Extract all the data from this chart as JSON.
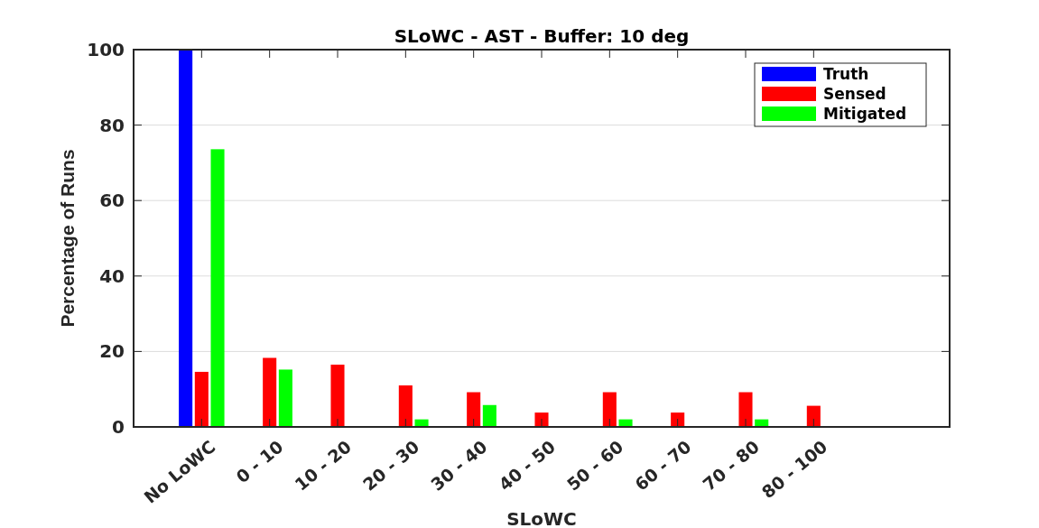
{
  "chart_data": {
    "type": "bar",
    "title": "SLoWC - AST - Buffer: 10 deg",
    "xlabel": "SLoWC",
    "ylabel": "Percentage of Runs",
    "categories": [
      "No LoWC",
      "0 - 10",
      "10 - 20",
      "20 - 30",
      "30 - 40",
      "40 - 50",
      "50 - 60",
      "60 - 70",
      "70 - 80",
      "80 - 100"
    ],
    "series": [
      {
        "name": "Truth",
        "color": "#0000ff",
        "values": [
          100,
          0,
          0,
          0,
          0,
          0,
          0,
          0,
          0,
          0
        ]
      },
      {
        "name": "Sensed",
        "color": "#ff0000",
        "values": [
          14.6,
          18.3,
          16.5,
          11.0,
          9.2,
          3.8,
          9.2,
          3.8,
          9.2,
          5.6
        ]
      },
      {
        "name": "Mitigated",
        "color": "#00ff00",
        "values": [
          73.6,
          15.2,
          0,
          2.0,
          5.8,
          0,
          2.0,
          0,
          2.0,
          0
        ]
      }
    ],
    "ylim": [
      0,
      100
    ],
    "yticks": [
      0,
      20,
      40,
      60,
      80,
      100
    ],
    "grid": "y",
    "legend": "top right"
  }
}
